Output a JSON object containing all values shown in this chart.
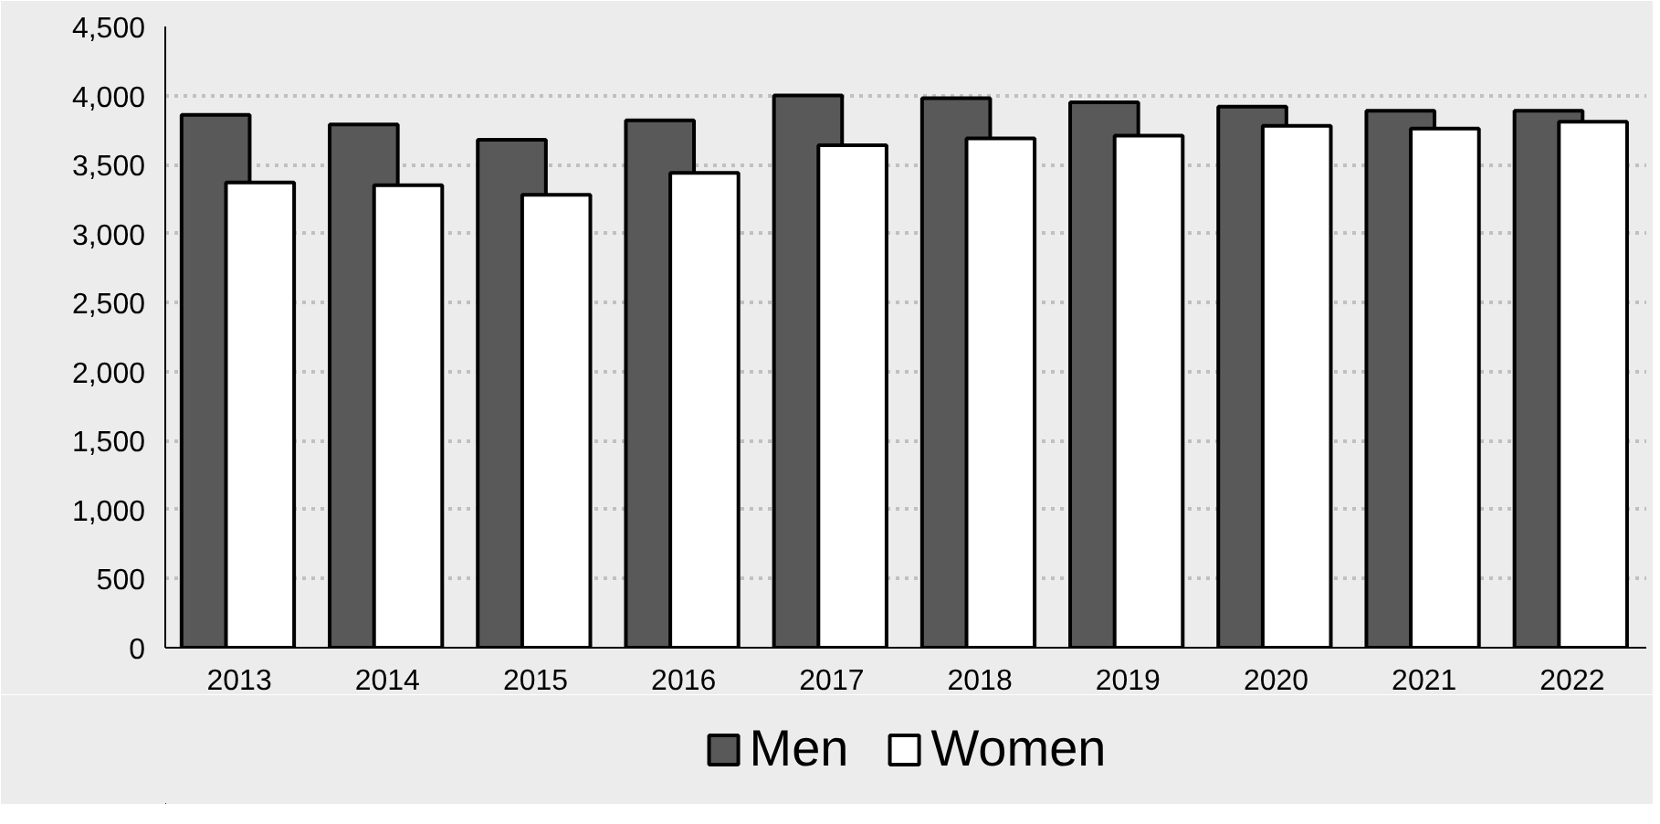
{
  "chart_data": {
    "type": "bar",
    "categories": [
      "2013",
      "2014",
      "2015",
      "2016",
      "2017",
      "2018",
      "2019",
      "2020",
      "2021",
      "2022"
    ],
    "series": [
      {
        "name": "Men",
        "color": "#595959",
        "values": [
          3860,
          3790,
          3680,
          3820,
          4000,
          3980,
          3950,
          3920,
          3890,
          3890
        ]
      },
      {
        "name": "Women",
        "color": "#ffffff",
        "values": [
          3370,
          3350,
          3280,
          3440,
          3640,
          3690,
          3710,
          3780,
          3760,
          3810
        ]
      }
    ],
    "ylim": [
      0,
      4500
    ],
    "yticks": [
      {
        "value": 0,
        "label": "0"
      },
      {
        "value": 500,
        "label": "500"
      },
      {
        "value": 1000,
        "label": "1,000"
      },
      {
        "value": 1500,
        "label": "1,500"
      },
      {
        "value": 2000,
        "label": "2,000"
      },
      {
        "value": 2500,
        "label": "2,500"
      },
      {
        "value": 3000,
        "label": "3,000"
      },
      {
        "value": 3500,
        "label": "3,500"
      },
      {
        "value": 4000,
        "label": "4,000"
      },
      {
        "value": 4500,
        "label": "4,500"
      }
    ],
    "grid": "y",
    "legend": "bottom"
  }
}
